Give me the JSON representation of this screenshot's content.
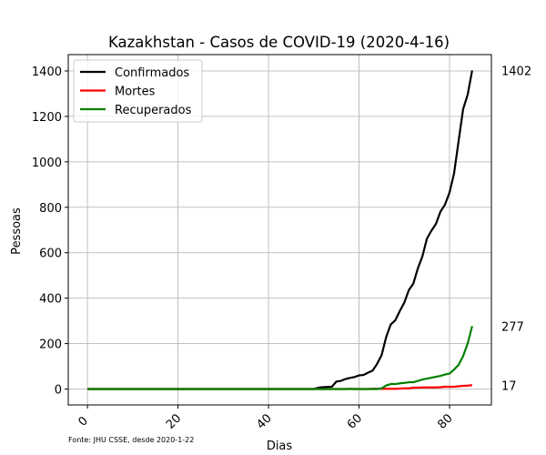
{
  "chart_data": {
    "type": "line",
    "title": "Kazakhstan - Casos de COVID-19 (2020-4-16)",
    "xlabel": "Dias",
    "ylabel": "Pessoas",
    "xlim": [
      -4.25,
      89.25
    ],
    "ylim": [
      -70,
      1472
    ],
    "xticks": [
      0,
      20,
      40,
      60,
      80
    ],
    "yticks": [
      0,
      200,
      400,
      600,
      800,
      1000,
      1200,
      1400
    ],
    "grid": true,
    "legend_position": "top-left",
    "source_note": "Fonte: JHU CSSE, desde 2020-1-22",
    "series": [
      {
        "name": "Confirmados",
        "color": "#000000",
        "end_label": "1402",
        "points": [
          [
            0,
            0
          ],
          [
            50,
            0
          ],
          [
            51,
            6
          ],
          [
            52,
            8
          ],
          [
            53,
            9
          ],
          [
            54,
            10
          ],
          [
            55,
            33
          ],
          [
            56,
            36
          ],
          [
            57,
            44
          ],
          [
            58,
            49
          ],
          [
            59,
            53
          ],
          [
            60,
            60
          ],
          [
            61,
            62
          ],
          [
            62,
            72
          ],
          [
            63,
            81
          ],
          [
            64,
            111
          ],
          [
            65,
            150
          ],
          [
            66,
            229
          ],
          [
            67,
            284
          ],
          [
            68,
            302
          ],
          [
            69,
            343
          ],
          [
            70,
            380
          ],
          [
            71,
            435
          ],
          [
            72,
            464
          ],
          [
            73,
            531
          ],
          [
            74,
            584
          ],
          [
            75,
            662
          ],
          [
            76,
            697
          ],
          [
            77,
            727
          ],
          [
            78,
            781
          ],
          [
            79,
            812
          ],
          [
            80,
            865
          ],
          [
            81,
            949
          ],
          [
            82,
            1091
          ],
          [
            83,
            1232
          ],
          [
            84,
            1295
          ],
          [
            85,
            1402
          ]
        ]
      },
      {
        "name": "Mortes",
        "color": "#ff0000",
        "end_label": "17",
        "points": [
          [
            0,
            0
          ],
          [
            57,
            0
          ],
          [
            58,
            1
          ],
          [
            59,
            0
          ],
          [
            62,
            0
          ],
          [
            63,
            1
          ],
          [
            66,
            1
          ],
          [
            67,
            1
          ],
          [
            68,
            1
          ],
          [
            69,
            2
          ],
          [
            70,
            3
          ],
          [
            71,
            3
          ],
          [
            72,
            6
          ],
          [
            73,
            6
          ],
          [
            74,
            7
          ],
          [
            75,
            7
          ],
          [
            76,
            7
          ],
          [
            77,
            7
          ],
          [
            78,
            8
          ],
          [
            79,
            10
          ],
          [
            80,
            10
          ],
          [
            81,
            10
          ],
          [
            82,
            12
          ],
          [
            83,
            14
          ],
          [
            84,
            15
          ],
          [
            85,
            17
          ]
        ]
      },
      {
        "name": "Recuperados",
        "color": "#008000",
        "end_label": "277",
        "points": [
          [
            0,
            0
          ],
          [
            64,
            0
          ],
          [
            65,
            3
          ],
          [
            66,
            16
          ],
          [
            67,
            22
          ],
          [
            68,
            22
          ],
          [
            69,
            25
          ],
          [
            70,
            27
          ],
          [
            71,
            30
          ],
          [
            72,
            30
          ],
          [
            73,
            36
          ],
          [
            74,
            42
          ],
          [
            75,
            46
          ],
          [
            76,
            50
          ],
          [
            77,
            54
          ],
          [
            78,
            58
          ],
          [
            79,
            64
          ],
          [
            80,
            68
          ],
          [
            81,
            86
          ],
          [
            82,
            106
          ],
          [
            83,
            145
          ],
          [
            84,
            200
          ],
          [
            85,
            277
          ]
        ]
      }
    ]
  }
}
